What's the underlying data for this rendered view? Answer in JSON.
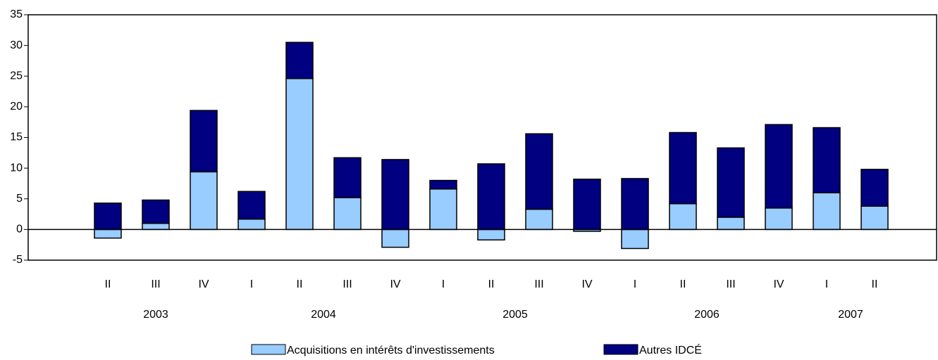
{
  "chart_data": {
    "type": "stacked_bar",
    "categories": [
      "II",
      "III",
      "IV",
      "I",
      "II",
      "III",
      "IV",
      "I",
      "II",
      "III",
      "IV",
      "I",
      "II",
      "III",
      "IV",
      "I",
      "II"
    ],
    "year_groups": [
      {
        "label": "2003",
        "size": 3
      },
      {
        "label": "2004",
        "size": 4
      },
      {
        "label": "2005",
        "size": 4
      },
      {
        "label": "2006",
        "size": 4
      },
      {
        "label": "2007",
        "size": 2
      }
    ],
    "series": [
      {
        "name": "Acquisitions en intérêts d'investissements",
        "color": "#99ccff",
        "values": [
          -1.4,
          1.0,
          9.4,
          1.7,
          24.6,
          5.2,
          -2.9,
          6.6,
          -1.7,
          3.3,
          -0.3,
          -3.1,
          4.2,
          2.0,
          3.5,
          6.0,
          3.8
        ]
      },
      {
        "name": "Autres IDCÉ",
        "color": "#000080",
        "values": [
          4.3,
          3.8,
          10.0,
          4.5,
          5.9,
          6.5,
          11.4,
          1.4,
          10.7,
          12.3,
          8.2,
          8.3,
          11.6,
          11.3,
          13.6,
          10.6,
          6.0
        ]
      }
    ],
    "ylim": [
      -5,
      35
    ],
    "yticks": [
      -5,
      0,
      5,
      10,
      15,
      20,
      25,
      30,
      35
    ]
  }
}
